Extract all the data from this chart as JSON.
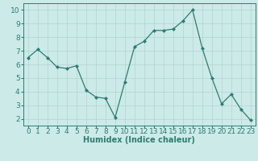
{
  "x": [
    0,
    1,
    2,
    3,
    4,
    5,
    6,
    7,
    8,
    9,
    10,
    11,
    12,
    13,
    14,
    15,
    16,
    17,
    18,
    19,
    20,
    21,
    22,
    23
  ],
  "y": [
    6.5,
    7.1,
    6.5,
    5.8,
    5.7,
    5.9,
    4.1,
    3.6,
    3.5,
    2.1,
    4.7,
    7.3,
    7.7,
    8.5,
    8.5,
    8.6,
    9.2,
    10.0,
    7.2,
    5.0,
    3.1,
    3.8,
    2.7,
    1.9
  ],
  "xlabel": "Humidex (Indice chaleur)",
  "ylim": [
    1.5,
    10.5
  ],
  "xlim": [
    -0.5,
    23.5
  ],
  "yticks": [
    2,
    3,
    4,
    5,
    6,
    7,
    8,
    9,
    10
  ],
  "xticks": [
    0,
    1,
    2,
    3,
    4,
    5,
    6,
    7,
    8,
    9,
    10,
    11,
    12,
    13,
    14,
    15,
    16,
    17,
    18,
    19,
    20,
    21,
    22,
    23
  ],
  "line_color": "#2e7d6e",
  "marker_color": "#2e7d6e",
  "bg_color": "#cceae8",
  "grid_color": "#b0d5d0",
  "xlabel_fontsize": 7,
  "tick_fontsize": 6.5
}
